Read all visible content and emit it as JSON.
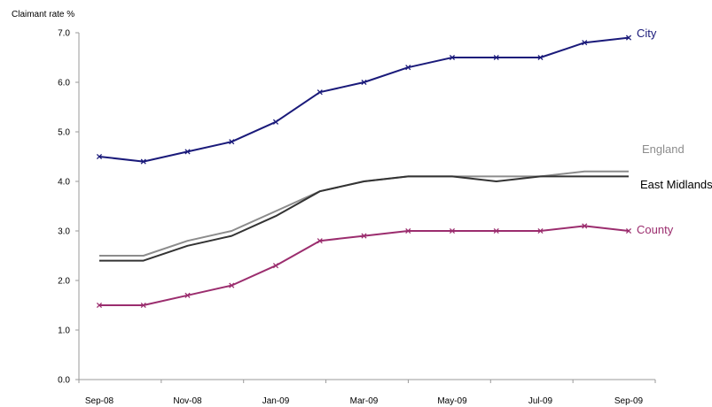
{
  "chart_data": {
    "type": "line",
    "ylabel": "Claimant rate %",
    "xlabel": "",
    "ylim": [
      0,
      7
    ],
    "yticks": [
      "0.0",
      "1.0",
      "2.0",
      "3.0",
      "4.0",
      "5.0",
      "6.0",
      "7.0"
    ],
    "x_tick_labels": [
      "Sep-08",
      "Nov-08",
      "Jan-09",
      "Mar-09",
      "May-09",
      "Jul-09",
      "Sep-09"
    ],
    "x_tick_indices": [
      0,
      2,
      4,
      6,
      8,
      10,
      12
    ],
    "categories": [
      "Sep-08",
      "Oct-08",
      "Nov-08",
      "Dec-08",
      "Jan-09",
      "Feb-09",
      "Mar-09",
      "Apr-09",
      "May-09",
      "Jun-09",
      "Jul-09",
      "Aug-09",
      "Sep-09"
    ],
    "legend": "inline-right",
    "grid": false,
    "series": [
      {
        "name": "City",
        "color": "#1a1a7a",
        "markers": true,
        "label_color": "#1a1a7a",
        "values": [
          4.5,
          4.4,
          4.6,
          4.8,
          5.2,
          5.8,
          6.0,
          6.3,
          6.5,
          6.5,
          6.5,
          6.8,
          6.9
        ]
      },
      {
        "name": "England",
        "color": "#8c8c8c",
        "markers": false,
        "label_color": "#8c8c8c",
        "values": [
          2.5,
          2.5,
          2.8,
          3.0,
          3.4,
          3.8,
          4.0,
          4.1,
          4.1,
          4.1,
          4.1,
          4.2,
          4.2
        ]
      },
      {
        "name": "East Midlands",
        "color": "#333333",
        "markers": false,
        "label_color": "#000000",
        "values": [
          2.4,
          2.4,
          2.7,
          2.9,
          3.3,
          3.8,
          4.0,
          4.1,
          4.1,
          4.0,
          4.1,
          4.1,
          4.1
        ]
      },
      {
        "name": "County",
        "color": "#9b2d6e",
        "markers": true,
        "label_color": "#9b2d6e",
        "values": [
          1.5,
          1.5,
          1.7,
          1.9,
          2.3,
          2.8,
          2.9,
          3.0,
          3.0,
          3.0,
          3.0,
          3.1,
          3.0
        ]
      }
    ]
  }
}
